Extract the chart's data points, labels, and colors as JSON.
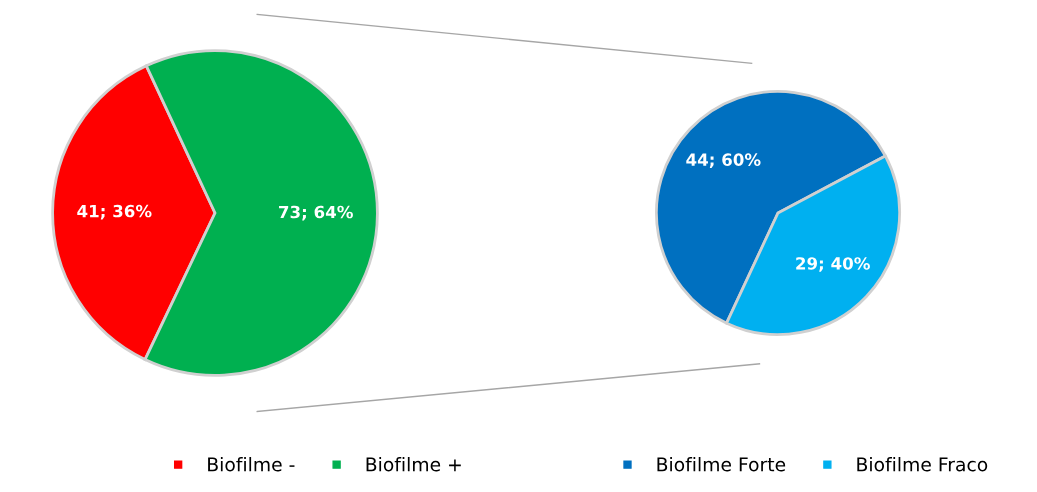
{
  "chart_data": [
    {
      "type": "pie",
      "categories": [
        "Biofilme -",
        "Biofilme +"
      ],
      "values": [
        41,
        73
      ],
      "colors": [
        "#ff0000",
        "#00b050"
      ],
      "value_labels": [
        "41; 36%",
        "73; 64%"
      ],
      "legend": "bottom"
    },
    {
      "type": "pie",
      "categories": [
        "Biofilme Forte",
        "Biofilme Fraco"
      ],
      "values": [
        44,
        29
      ],
      "colors": [
        "#0070c0",
        "#00b0f0"
      ],
      "value_labels": [
        "44; 60%",
        "29; 40%"
      ],
      "legend": "bottom"
    }
  ]
}
